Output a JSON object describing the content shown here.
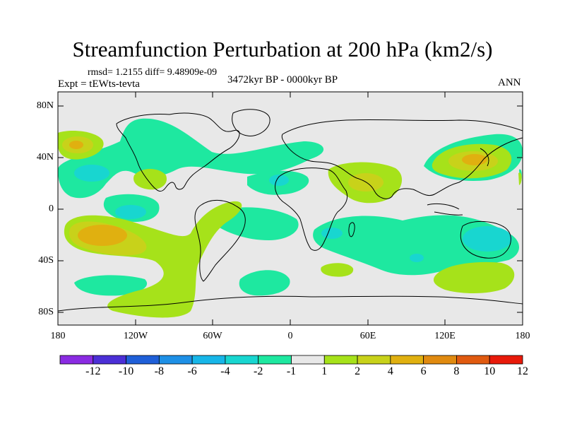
{
  "title": "Streamfunction Perturbation at 200 hPa (km2/s)",
  "stats": "rmsd= 1.2155 diff= 9.48909e-09",
  "experiment": "Expt = tEWts-tevta",
  "period": "3472kyr BP - 0000kyr BP",
  "season": "ANN",
  "lat_labels": [
    "80N",
    "40N",
    "0",
    "40S",
    "80S"
  ],
  "lon_labels": [
    "180",
    "120W",
    "60W",
    "0",
    "60E",
    "120E",
    "180"
  ],
  "colorbar": {
    "labels": [
      "-12",
      "-10",
      "-8",
      "-6",
      "-4",
      "-2",
      "-1",
      "1",
      "2",
      "4",
      "6",
      "8",
      "10",
      "12"
    ],
    "colors": [
      "#8a2be2",
      "#4b2fd6",
      "#1f5fd8",
      "#1e90e6",
      "#17b6e8",
      "#18d6d0",
      "#1ee8a0",
      "#e8e8e8",
      "#a6e21a",
      "#c8d21a",
      "#e0b010",
      "#e08a10",
      "#e05a10",
      "#e81a0a"
    ]
  },
  "colors": {
    "background": "#e8e8e8",
    "neg1": "#1ee8a0",
    "neg2": "#18d6d0",
    "pos1": "#a6e21a",
    "pos2": "#c8d21a",
    "pos3": "#e0b010",
    "pos4": "#e08a10"
  }
}
